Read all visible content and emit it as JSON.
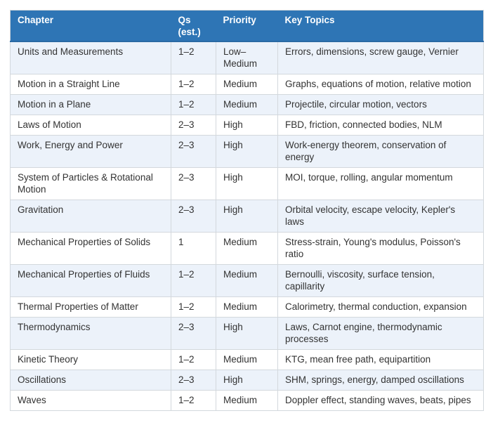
{
  "page": {
    "background_color": "#ffffff"
  },
  "table": {
    "header": {
      "bg_color": "#2e75b5",
      "text_color": "#ffffff",
      "columns": [
        "Chapter",
        "Qs (est.)",
        "Priority",
        "Key Topics"
      ]
    },
    "alt_row_bg_color": "#ecf2fa",
    "border_color": "#d3d8dd",
    "rows": [
      {
        "chapter": "Units and Measurements",
        "qs": "1–2",
        "priority": "Low–Medium",
        "topics": "Errors, dimensions, screw gauge, Vernier"
      },
      {
        "chapter": "Motion in a Straight Line",
        "qs": "1–2",
        "priority": "Medium",
        "topics": "Graphs, equations of motion, relative motion"
      },
      {
        "chapter": "Motion in a Plane",
        "qs": "1–2",
        "priority": "Medium",
        "topics": "Projectile, circular motion, vectors"
      },
      {
        "chapter": "Laws of Motion",
        "qs": "2–3",
        "priority": "High",
        "topics": "FBD, friction, connected bodies, NLM"
      },
      {
        "chapter": "Work, Energy and Power",
        "qs": "2–3",
        "priority": "High",
        "topics": "Work-energy theorem, conservation of energy"
      },
      {
        "chapter": "System of Particles & Rotational Motion",
        "qs": "2–3",
        "priority": "High",
        "topics": "MOI, torque, rolling, angular momentum"
      },
      {
        "chapter": "Gravitation",
        "qs": "2–3",
        "priority": "High",
        "topics": "Orbital velocity, escape velocity, Kepler's laws"
      },
      {
        "chapter": "Mechanical Properties of Solids",
        "qs": "1",
        "priority": "Medium",
        "topics": "Stress-strain, Young's modulus, Poisson's ratio"
      },
      {
        "chapter": "Mechanical Properties of Fluids",
        "qs": "1–2",
        "priority": "Medium",
        "topics": "Bernoulli, viscosity, surface tension, capillarity"
      },
      {
        "chapter": "Thermal Properties of Matter",
        "qs": "1–2",
        "priority": "Medium",
        "topics": "Calorimetry, thermal conduction, expansion"
      },
      {
        "chapter": "Thermodynamics",
        "qs": "2–3",
        "priority": "High",
        "topics": "Laws, Carnot engine, thermodynamic processes"
      },
      {
        "chapter": "Kinetic Theory",
        "qs": "1–2",
        "priority": "Medium",
        "topics": "KTG, mean free path, equipartition"
      },
      {
        "chapter": "Oscillations",
        "qs": "2–3",
        "priority": "High",
        "topics": "SHM, springs, energy, damped oscillations"
      },
      {
        "chapter": "Waves",
        "qs": "1–2",
        "priority": "Medium",
        "topics": "Doppler effect, standing waves, beats, pipes"
      }
    ]
  }
}
